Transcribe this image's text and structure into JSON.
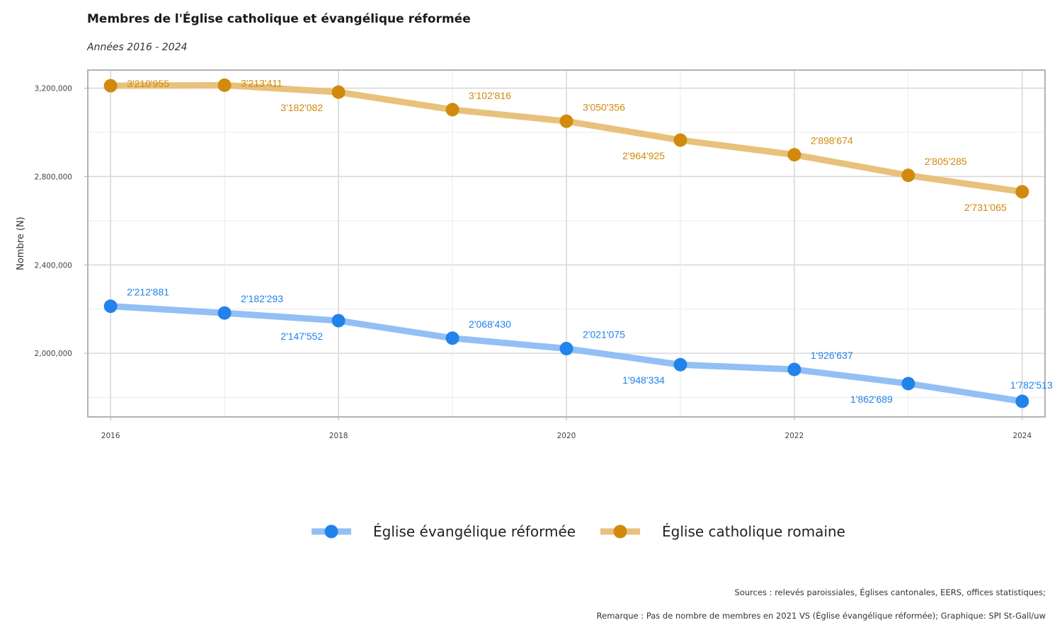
{
  "title": "Membres de l'Église catholique et évangélique réformée",
  "subtitle": "Années 2016 - 2024",
  "sources": "Sources : relevés paroissiales, Églises cantonales, EERS, offices statistiques;",
  "remark": "Remarque : Pas de nombre de membres en 2021 VS (Église évangélique réformée); Graphique: SPI St-Gall/uw",
  "chart_data": {
    "type": "line",
    "ylabel": "Nombre (N)",
    "xlabel": "",
    "x": [
      2016,
      2017,
      2018,
      2019,
      2020,
      2021,
      2022,
      2023,
      2024
    ],
    "x_ticks": [
      2016,
      2018,
      2020,
      2022,
      2024
    ],
    "x_tick_labels": [
      "2016",
      "2018",
      "2020",
      "2022",
      "2024"
    ],
    "xlim": [
      2015.8,
      2024.2
    ],
    "y_ticks": [
      2000000,
      2400000,
      2800000,
      3200000
    ],
    "y_tick_labels": [
      "2,000,000",
      "2,400,000",
      "2,800,000",
      "3,200,000"
    ],
    "ylim": [
      1712000,
      3282000
    ],
    "grid": true,
    "legend_position": "bottom",
    "series": [
      {
        "name": "Église évangélique réformée",
        "color": "#2283ea",
        "line_color": "#92c0f5",
        "values": [
          2212881,
          2182293,
          2147552,
          2068430,
          2021075,
          1948334,
          1926637,
          1862689,
          1782513
        ],
        "labels": [
          "2'212'881",
          "2'182'293",
          "2'147'552",
          "2'068'430",
          "2'021'075",
          "1'948'334",
          "1'926'637",
          "1'862'689",
          "1'782'513"
        ],
        "label_pos": [
          "above",
          "above",
          "below",
          "above",
          "above",
          "below",
          "above",
          "below",
          "above"
        ]
      },
      {
        "name": "Église catholique romaine",
        "color": "#d18a0c",
        "line_color": "#e8c17c",
        "values": [
          3210955,
          3213411,
          3182082,
          3102816,
          3050356,
          2964925,
          2898674,
          2805285,
          2731065
        ],
        "labels": [
          "3'210'955",
          "3'213'411",
          "3'182'082",
          "3'102'816",
          "3'050'356",
          "2'964'925",
          "2'898'674",
          "2'805'285",
          "2'731'065"
        ],
        "label_pos": [
          "right",
          "right",
          "below",
          "above",
          "above",
          "below",
          "above",
          "above",
          "below"
        ]
      }
    ]
  }
}
